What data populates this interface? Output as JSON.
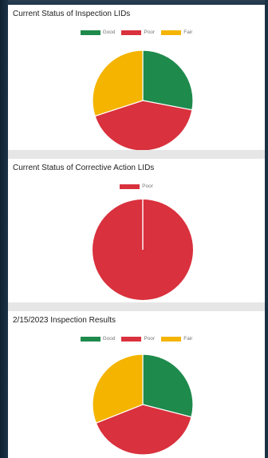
{
  "colors": {
    "good": "#1e8a4c",
    "poor": "#d9313d",
    "fair": "#f4b400"
  },
  "chart_data": [
    {
      "type": "pie",
      "title": "Current Status of Inspection LIDs",
      "legend": [
        "Good",
        "Poor",
        "Fair"
      ],
      "slices": [
        {
          "label": "Good",
          "value": 28
        },
        {
          "label": "Poor",
          "value": 42
        },
        {
          "label": "Fair",
          "value": 30
        }
      ]
    },
    {
      "type": "pie",
      "title": "Current Status of Corrective Action LIDs",
      "legend": [
        "Poor"
      ],
      "slices": [
        {
          "label": "Poor",
          "value": 100
        }
      ]
    },
    {
      "type": "pie",
      "title": "2/15/2023 Inspection Results",
      "legend": [
        "Good",
        "Poor",
        "Fair"
      ],
      "slices": [
        {
          "label": "Good",
          "value": 29
        },
        {
          "label": "Poor",
          "value": 40
        },
        {
          "label": "Fair",
          "value": 31
        }
      ]
    }
  ]
}
